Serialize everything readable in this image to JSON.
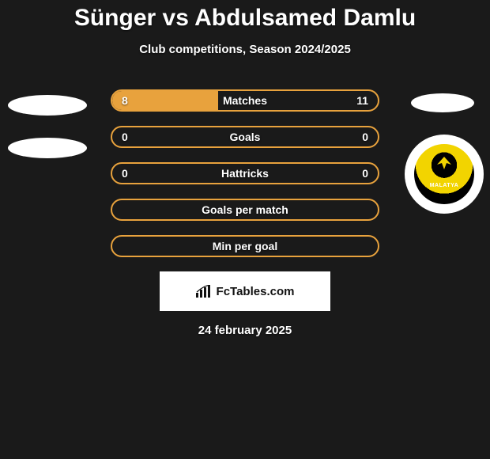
{
  "title": "Sünger vs Abdulsamed Damlu",
  "subtitle": "Club competitions, Season 2024/2025",
  "date": "24 february 2025",
  "footer": {
    "label": "FcTables.com"
  },
  "club": {
    "ribbon": "MALATYA"
  },
  "accent_color": "#e8a23d",
  "bg_color": "#1a1a1a",
  "rows": [
    {
      "label": "Matches",
      "left": "8",
      "right": "11",
      "fill_left_pct": 40,
      "fill_right_pct": 0
    },
    {
      "label": "Goals",
      "left": "0",
      "right": "0",
      "fill_left_pct": 0,
      "fill_right_pct": 0
    },
    {
      "label": "Hattricks",
      "left": "0",
      "right": "0",
      "fill_left_pct": 0,
      "fill_right_pct": 0
    },
    {
      "label": "Goals per match",
      "left": "",
      "right": "",
      "fill_left_pct": 0,
      "fill_right_pct": 0
    },
    {
      "label": "Min per goal",
      "left": "",
      "right": "",
      "fill_left_pct": 0,
      "fill_right_pct": 0
    }
  ]
}
